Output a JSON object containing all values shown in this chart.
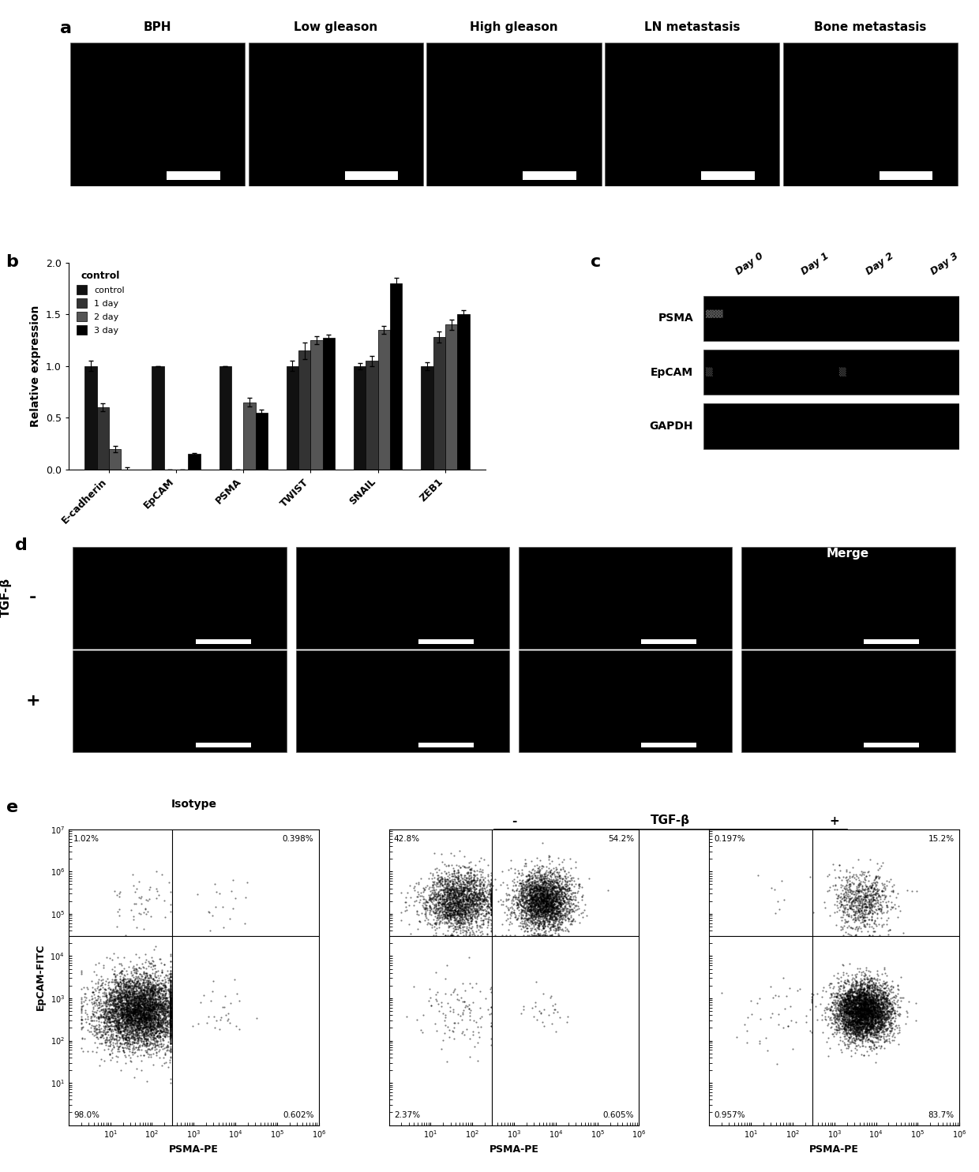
{
  "panel_a_labels": [
    "BPH",
    "Low gleason",
    "High gleason",
    "LN metastasis",
    "Bone metastasis"
  ],
  "panel_b_groups": [
    "E-cadherin",
    "EpCAM",
    "PSMA",
    "TWIST",
    "SNAIL",
    "ZEB1"
  ],
  "panel_b_control": [
    1.0,
    1.0,
    1.0,
    1.0,
    1.0,
    1.0
  ],
  "panel_b_1day": [
    0.6,
    0.0,
    0.0,
    1.15,
    1.05,
    1.28
  ],
  "panel_b_2day": [
    0.2,
    0.0,
    0.65,
    1.25,
    1.35,
    1.4
  ],
  "panel_b_3day": [
    0.0,
    0.15,
    0.55,
    1.27,
    1.8,
    1.5
  ],
  "panel_b_errors_control": [
    0.05,
    0.0,
    0.0,
    0.05,
    0.03,
    0.04
  ],
  "panel_b_errors_1day": [
    0.04,
    0.0,
    0.0,
    0.08,
    0.05,
    0.05
  ],
  "panel_b_errors_2day": [
    0.03,
    0.0,
    0.04,
    0.04,
    0.04,
    0.05
  ],
  "panel_b_errors_3day": [
    0.02,
    0.01,
    0.03,
    0.03,
    0.05,
    0.04
  ],
  "panel_b_ylabel": "Relative expression",
  "panel_b_ylim": [
    0.0,
    2.0
  ],
  "panel_c_rows": [
    "PSMA",
    "EpCAM",
    "GAPDH"
  ],
  "panel_c_cols": [
    "Day 0",
    "Day 1",
    "Day 2",
    "Day 3"
  ],
  "panel_d_label": "TGF-β",
  "panel_d_minus": "-",
  "panel_d_plus": "+",
  "panel_d_merge": "Merge",
  "panel_e_title": "TGF-β",
  "panel_e_isotype": "Isotype",
  "panel_e_minus": "-",
  "panel_e_plus": "+",
  "panel_e_xlabel": "PSMA-PE",
  "panel_e_ylabel": "EpCAM-FITC",
  "scatter1_ul": "1.02%",
  "scatter1_ur": "0.398%",
  "scatter1_ll": "98.0%",
  "scatter1_lr": "0.602%",
  "scatter2_ul": "42.8%",
  "scatter2_ur": "54.2%",
  "scatter2_ll": "2.37%",
  "scatter2_lr": "0.605%",
  "scatter3_ul": "0.197%",
  "scatter3_ur": "15.2%",
  "scatter3_ll": "0.957%",
  "scatter3_lr": "83.7%",
  "bar_color": "#000000",
  "bg_color": "#000000",
  "white": "#ffffff"
}
